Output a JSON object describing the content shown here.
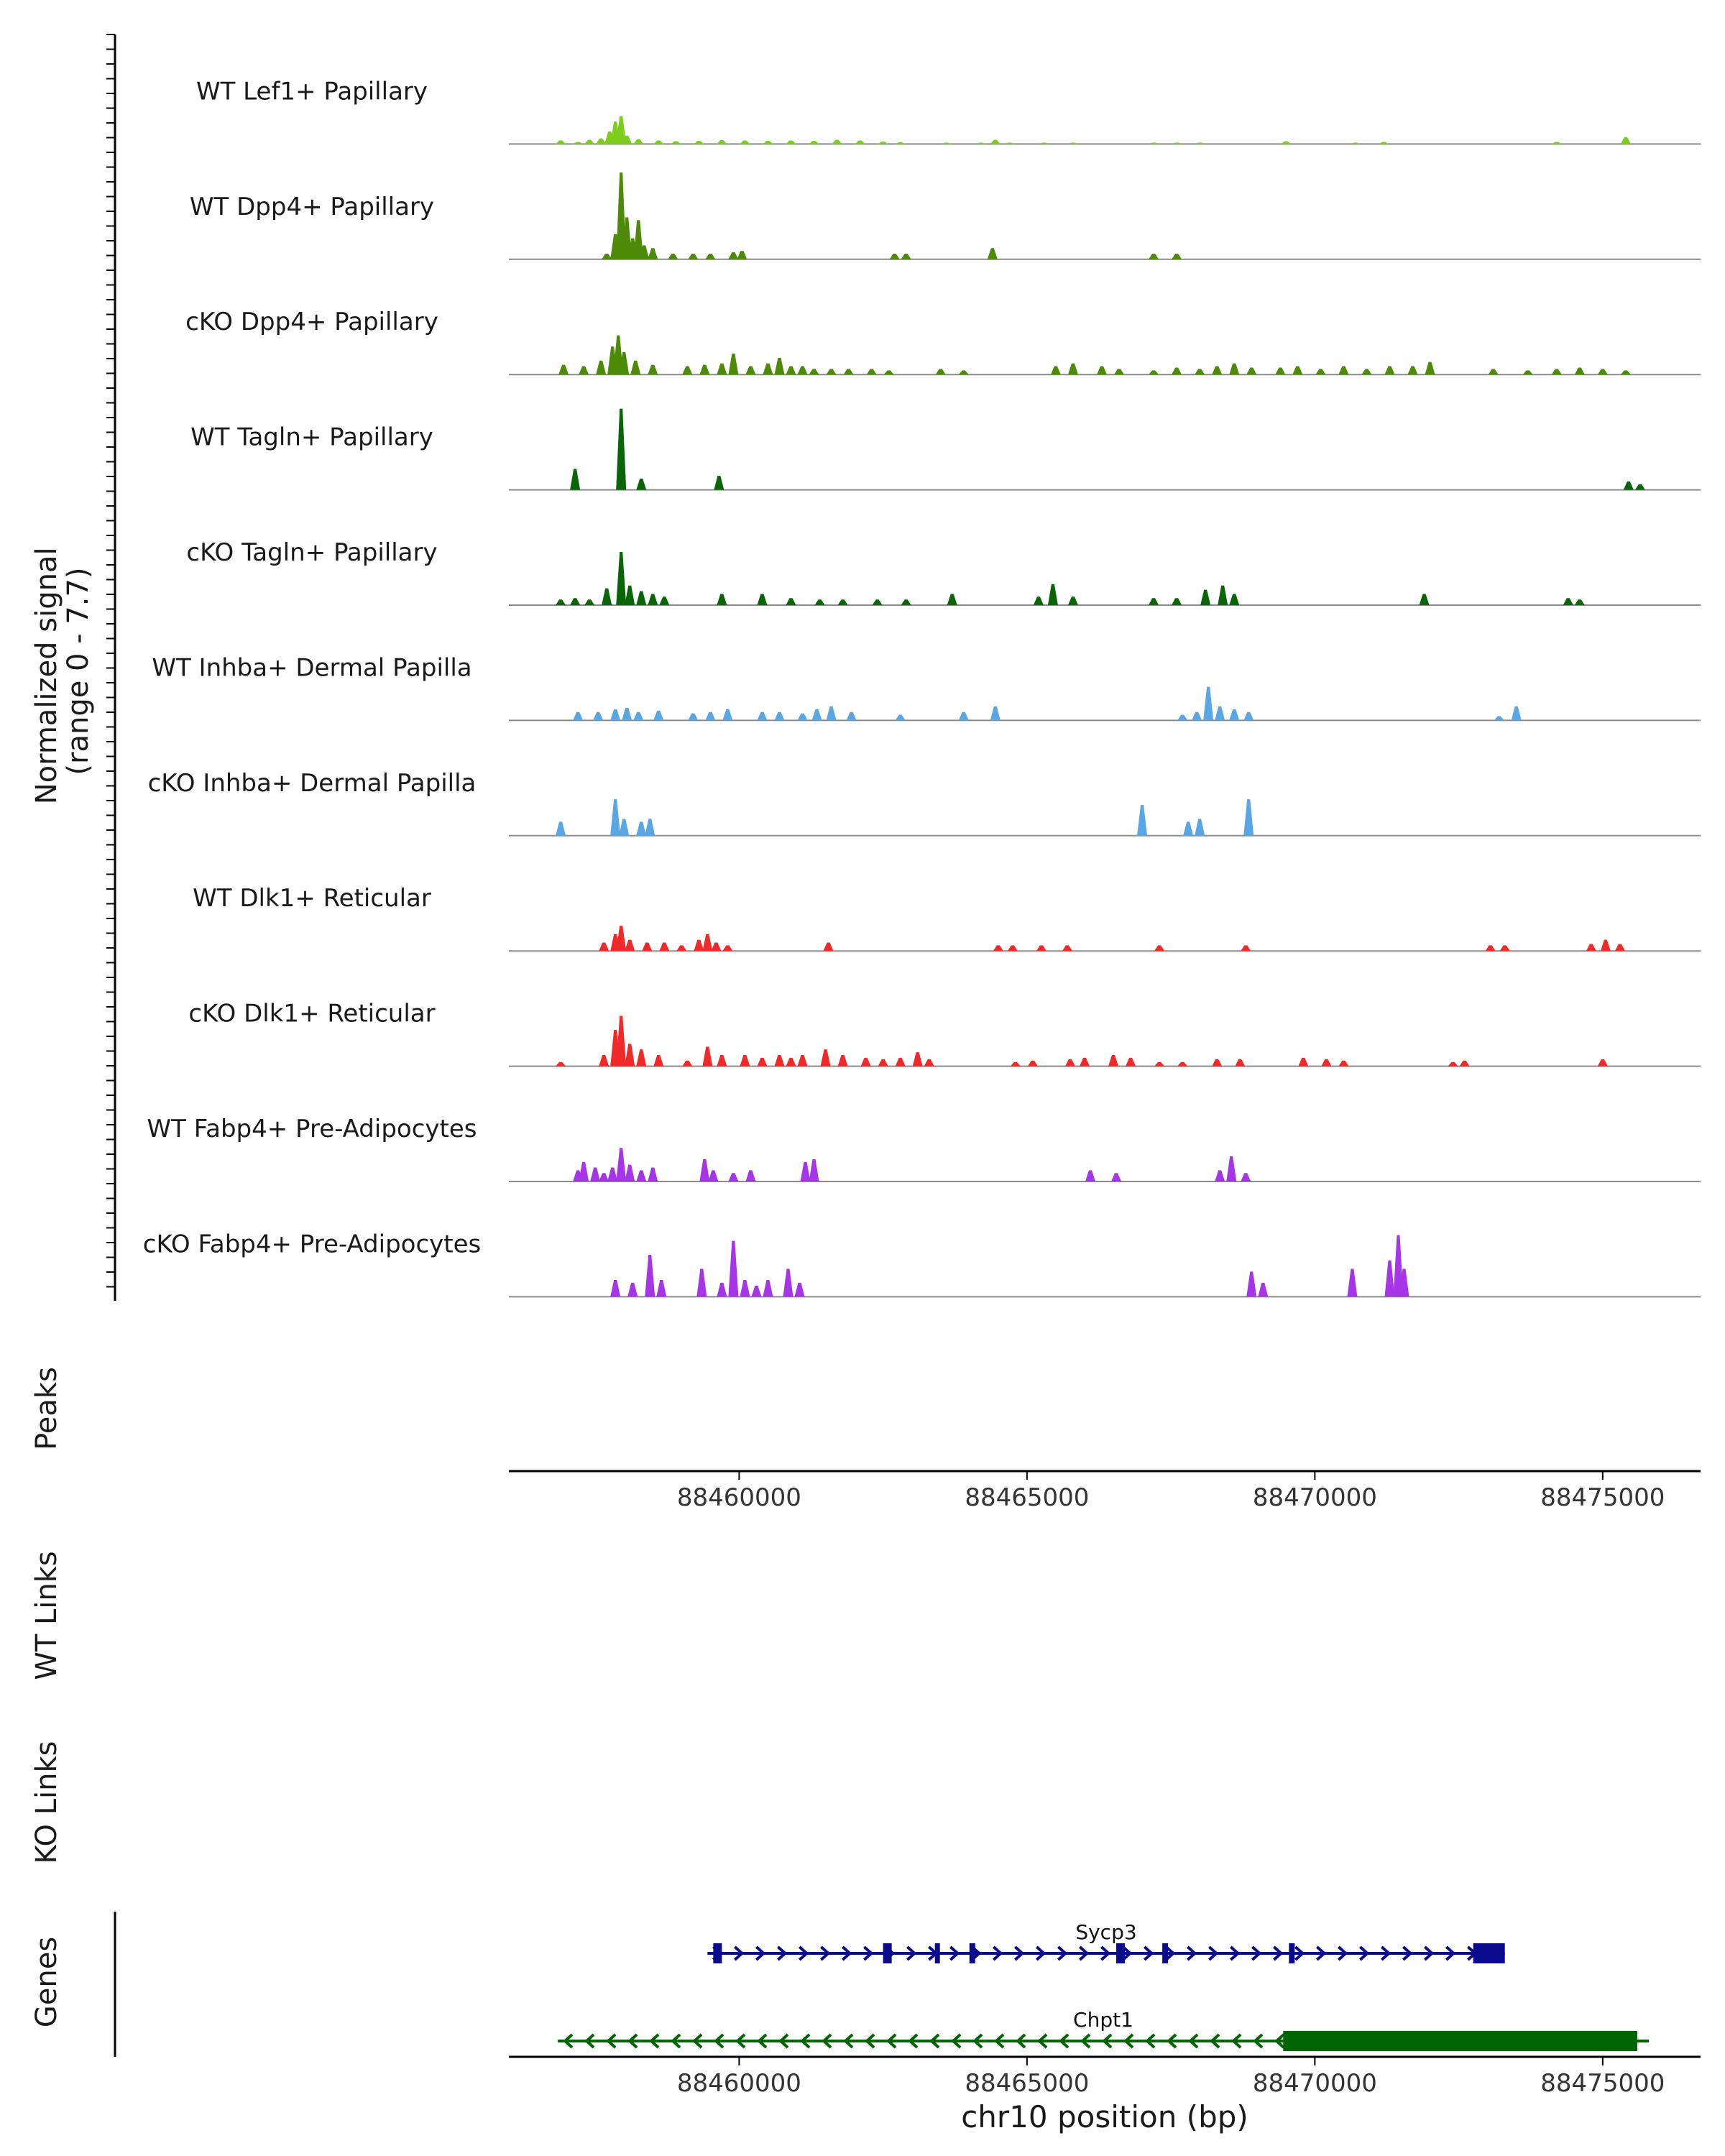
{
  "chart_data": {
    "type": "area",
    "title": "",
    "xlabel": "chr10 position (bp)",
    "ylabel": "Normalized signal\n(range 0 - 7.7)",
    "ylim": [
      0,
      7.7
    ],
    "xlim": [
      88456000,
      88476700
    ],
    "xticks": [
      88460000,
      88465000,
      88470000,
      88475000
    ],
    "xtick_labels": [
      "88460000",
      "88465000",
      "88470000",
      "88475000"
    ],
    "panel_labels": [
      "Peaks",
      "WT Links",
      "KO Links",
      "Genes"
    ],
    "tracks": [
      {
        "name": "WT Lef1+ Papillary",
        "color": "#7CCD1E",
        "points": [
          [
            88456900,
            0.25
          ],
          [
            88457200,
            0.15
          ],
          [
            88457400,
            0.3
          ],
          [
            88457600,
            0.4
          ],
          [
            88457750,
            0.9
          ],
          [
            88457850,
            1.6
          ],
          [
            88457950,
            2.0
          ],
          [
            88458050,
            0.6
          ],
          [
            88458250,
            0.35
          ],
          [
            88458600,
            0.25
          ],
          [
            88458900,
            0.2
          ],
          [
            88459300,
            0.22
          ],
          [
            88459700,
            0.28
          ],
          [
            88460100,
            0.25
          ],
          [
            88460500,
            0.22
          ],
          [
            88460900,
            0.25
          ],
          [
            88461300,
            0.22
          ],
          [
            88461700,
            0.3
          ],
          [
            88462100,
            0.25
          ],
          [
            88462500,
            0.18
          ],
          [
            88462800,
            0.12
          ],
          [
            88463600,
            0.1
          ],
          [
            88464200,
            0.1
          ],
          [
            88464450,
            0.3
          ],
          [
            88464700,
            0.1
          ],
          [
            88465300,
            0.1
          ],
          [
            88465800,
            0.1
          ],
          [
            88467200,
            0.1
          ],
          [
            88467600,
            0.1
          ],
          [
            88468000,
            0.1
          ],
          [
            88469500,
            0.2
          ],
          [
            88470700,
            0.1
          ],
          [
            88471200,
            0.15
          ],
          [
            88474200,
            0.15
          ],
          [
            88475400,
            0.5
          ]
        ]
      },
      {
        "name": "WT Dpp4+ Papillary",
        "color": "#4C8A07",
        "points": [
          [
            88457700,
            0.4
          ],
          [
            88457850,
            1.8
          ],
          [
            88457950,
            6.2
          ],
          [
            88458050,
            3.0
          ],
          [
            88458150,
            1.5
          ],
          [
            88458250,
            2.8
          ],
          [
            88458350,
            1.0
          ],
          [
            88458500,
            0.8
          ],
          [
            88458850,
            0.4
          ],
          [
            88459200,
            0.4
          ],
          [
            88459500,
            0.4
          ],
          [
            88459900,
            0.5
          ],
          [
            88460050,
            0.6
          ],
          [
            88462700,
            0.4
          ],
          [
            88462900,
            0.4
          ],
          [
            88464400,
            0.8
          ],
          [
            88467200,
            0.4
          ],
          [
            88467600,
            0.4
          ]
        ]
      },
      {
        "name": "cKO Dpp4+ Papillary",
        "color": "#4C8A07",
        "points": [
          [
            88456950,
            0.7
          ],
          [
            88457300,
            0.6
          ],
          [
            88457600,
            1.0
          ],
          [
            88457800,
            2.0
          ],
          [
            88457900,
            2.8
          ],
          [
            88458000,
            1.6
          ],
          [
            88458200,
            1.0
          ],
          [
            88458500,
            0.7
          ],
          [
            88459100,
            0.6
          ],
          [
            88459400,
            0.7
          ],
          [
            88459700,
            0.8
          ],
          [
            88459900,
            1.5
          ],
          [
            88460200,
            0.6
          ],
          [
            88460500,
            0.8
          ],
          [
            88460700,
            1.2
          ],
          [
            88460900,
            0.6
          ],
          [
            88461100,
            0.6
          ],
          [
            88461300,
            0.4
          ],
          [
            88461600,
            0.4
          ],
          [
            88461900,
            0.4
          ],
          [
            88462300,
            0.4
          ],
          [
            88462600,
            0.3
          ],
          [
            88463500,
            0.4
          ],
          [
            88463900,
            0.3
          ],
          [
            88465500,
            0.6
          ],
          [
            88465800,
            0.8
          ],
          [
            88466300,
            0.6
          ],
          [
            88466600,
            0.4
          ],
          [
            88467200,
            0.3
          ],
          [
            88467600,
            0.5
          ],
          [
            88468000,
            0.4
          ],
          [
            88468300,
            0.6
          ],
          [
            88468600,
            0.8
          ],
          [
            88468900,
            0.5
          ],
          [
            88469400,
            0.5
          ],
          [
            88469700,
            0.6
          ],
          [
            88470100,
            0.4
          ],
          [
            88470500,
            0.6
          ],
          [
            88470900,
            0.4
          ],
          [
            88471300,
            0.6
          ],
          [
            88471700,
            0.6
          ],
          [
            88472000,
            0.9
          ],
          [
            88473100,
            0.4
          ],
          [
            88473700,
            0.3
          ],
          [
            88474200,
            0.4
          ],
          [
            88474600,
            0.5
          ],
          [
            88475000,
            0.4
          ],
          [
            88475400,
            0.3
          ]
        ]
      },
      {
        "name": "WT Tagln+ Papillary",
        "color": "#0A6408",
        "points": [
          [
            88457150,
            1.5
          ],
          [
            88457950,
            5.8
          ],
          [
            88458300,
            0.8
          ],
          [
            88459650,
            1.0
          ],
          [
            88475450,
            0.6
          ],
          [
            88475650,
            0.4
          ]
        ]
      },
      {
        "name": "cKO Tagln+ Papillary",
        "color": "#0A6408",
        "points": [
          [
            88456900,
            0.4
          ],
          [
            88457150,
            0.5
          ],
          [
            88457400,
            0.4
          ],
          [
            88457700,
            1.2
          ],
          [
            88457950,
            3.8
          ],
          [
            88458100,
            1.4
          ],
          [
            88458300,
            1.0
          ],
          [
            88458500,
            0.8
          ],
          [
            88458700,
            0.6
          ],
          [
            88459700,
            0.8
          ],
          [
            88460400,
            0.8
          ],
          [
            88460900,
            0.5
          ],
          [
            88461400,
            0.4
          ],
          [
            88461800,
            0.4
          ],
          [
            88462400,
            0.4
          ],
          [
            88462900,
            0.4
          ],
          [
            88463700,
            0.8
          ],
          [
            88465200,
            0.6
          ],
          [
            88465450,
            1.5
          ],
          [
            88465800,
            0.6
          ],
          [
            88467200,
            0.5
          ],
          [
            88467600,
            0.5
          ],
          [
            88468100,
            1.1
          ],
          [
            88468400,
            1.4
          ],
          [
            88468600,
            0.8
          ],
          [
            88471900,
            0.8
          ],
          [
            88474400,
            0.5
          ],
          [
            88474600,
            0.4
          ]
        ]
      },
      {
        "name": "WT Inhba+ Dermal Papilla",
        "color": "#58A6E4",
        "points": [
          [
            88457200,
            0.6
          ],
          [
            88457550,
            0.6
          ],
          [
            88457850,
            0.8
          ],
          [
            88458050,
            0.9
          ],
          [
            88458250,
            0.6
          ],
          [
            88458600,
            0.7
          ],
          [
            88459200,
            0.5
          ],
          [
            88459500,
            0.6
          ],
          [
            88459800,
            0.8
          ],
          [
            88460400,
            0.6
          ],
          [
            88460700,
            0.6
          ],
          [
            88461100,
            0.5
          ],
          [
            88461350,
            0.8
          ],
          [
            88461600,
            1.0
          ],
          [
            88461950,
            0.6
          ],
          [
            88462800,
            0.4
          ],
          [
            88463900,
            0.6
          ],
          [
            88464450,
            1.0
          ],
          [
            88467700,
            0.4
          ],
          [
            88467950,
            0.6
          ],
          [
            88468150,
            2.4
          ],
          [
            88468350,
            1.0
          ],
          [
            88468600,
            0.8
          ],
          [
            88468850,
            0.6
          ],
          [
            88473200,
            0.3
          ],
          [
            88473500,
            1.0
          ]
        ]
      },
      {
        "name": "cKO Inhba+ Dermal Papilla",
        "color": "#58A6E4",
        "points": [
          [
            88456900,
            1.0
          ],
          [
            88457850,
            2.6
          ],
          [
            88458000,
            1.2
          ],
          [
            88458300,
            1.0
          ],
          [
            88458450,
            1.2
          ],
          [
            88467000,
            2.2
          ],
          [
            88467800,
            1.0
          ],
          [
            88468000,
            1.2
          ],
          [
            88468850,
            2.6
          ]
        ]
      },
      {
        "name": "WT Dlk1+ Reticular",
        "color": "#F02A2A",
        "points": [
          [
            88457650,
            0.6
          ],
          [
            88457850,
            1.2
          ],
          [
            88457950,
            1.8
          ],
          [
            88458100,
            0.8
          ],
          [
            88458400,
            0.6
          ],
          [
            88458700,
            0.6
          ],
          [
            88459000,
            0.4
          ],
          [
            88459300,
            0.8
          ],
          [
            88459450,
            1.2
          ],
          [
            88459600,
            0.6
          ],
          [
            88459800,
            0.4
          ],
          [
            88461550,
            0.6
          ],
          [
            88464500,
            0.4
          ],
          [
            88464750,
            0.4
          ],
          [
            88465250,
            0.4
          ],
          [
            88465700,
            0.4
          ],
          [
            88467300,
            0.4
          ],
          [
            88468800,
            0.4
          ],
          [
            88473050,
            0.4
          ],
          [
            88473300,
            0.4
          ],
          [
            88474800,
            0.5
          ],
          [
            88475050,
            0.8
          ],
          [
            88475300,
            0.5
          ]
        ]
      },
      {
        "name": "cKO Dlk1+ Reticular",
        "color": "#F02A2A",
        "points": [
          [
            88456900,
            0.3
          ],
          [
            88457650,
            0.8
          ],
          [
            88457850,
            2.6
          ],
          [
            88457950,
            3.6
          ],
          [
            88458100,
            1.6
          ],
          [
            88458300,
            1.2
          ],
          [
            88458600,
            0.8
          ],
          [
            88459100,
            0.4
          ],
          [
            88459450,
            1.4
          ],
          [
            88459700,
            0.8
          ],
          [
            88460100,
            0.8
          ],
          [
            88460400,
            0.6
          ],
          [
            88460700,
            0.8
          ],
          [
            88460900,
            0.6
          ],
          [
            88461100,
            0.8
          ],
          [
            88461500,
            1.2
          ],
          [
            88461800,
            0.8
          ],
          [
            88462200,
            0.6
          ],
          [
            88462500,
            0.5
          ],
          [
            88462800,
            0.6
          ],
          [
            88463100,
            1.0
          ],
          [
            88463300,
            0.5
          ],
          [
            88464800,
            0.3
          ],
          [
            88465100,
            0.4
          ],
          [
            88465750,
            0.5
          ],
          [
            88466000,
            0.6
          ],
          [
            88466500,
            0.8
          ],
          [
            88466800,
            0.6
          ],
          [
            88467300,
            0.3
          ],
          [
            88467700,
            0.3
          ],
          [
            88468300,
            0.5
          ],
          [
            88468700,
            0.5
          ],
          [
            88469800,
            0.6
          ],
          [
            88470200,
            0.5
          ],
          [
            88470500,
            0.4
          ],
          [
            88472400,
            0.3
          ],
          [
            88472600,
            0.4
          ],
          [
            88475000,
            0.5
          ]
        ]
      },
      {
        "name": "WT Fabp4+ Pre-Adipocytes",
        "color": "#A535E6",
        "points": [
          [
            88457200,
            0.8
          ],
          [
            88457300,
            1.4
          ],
          [
            88457500,
            1.0
          ],
          [
            88457650,
            0.6
          ],
          [
            88457800,
            1.0
          ],
          [
            88457950,
            2.4
          ],
          [
            88458100,
            1.2
          ],
          [
            88458300,
            0.8
          ],
          [
            88458500,
            1.0
          ],
          [
            88459400,
            1.6
          ],
          [
            88459550,
            0.8
          ],
          [
            88459900,
            0.6
          ],
          [
            88460200,
            0.8
          ],
          [
            88461150,
            1.4
          ],
          [
            88461300,
            1.6
          ],
          [
            88466100,
            0.8
          ],
          [
            88466550,
            0.6
          ],
          [
            88468350,
            0.8
          ],
          [
            88468550,
            1.8
          ],
          [
            88468800,
            0.6
          ]
        ]
      },
      {
        "name": "cKO Fabp4+ Pre-Adipocytes",
        "color": "#A535E6",
        "points": [
          [
            88457850,
            1.2
          ],
          [
            88458150,
            1.0
          ],
          [
            88458450,
            3.0
          ],
          [
            88458650,
            1.2
          ],
          [
            88459350,
            2.0
          ],
          [
            88459700,
            1.0
          ],
          [
            88459900,
            4.0
          ],
          [
            88460100,
            1.2
          ],
          [
            88460300,
            0.8
          ],
          [
            88460500,
            1.2
          ],
          [
            88460850,
            2.0
          ],
          [
            88461050,
            1.0
          ],
          [
            88468900,
            1.8
          ],
          [
            88469100,
            1.0
          ],
          [
            88470650,
            2.0
          ],
          [
            88471300,
            2.6
          ],
          [
            88471450,
            4.4
          ],
          [
            88471550,
            2.0
          ]
        ]
      }
    ],
    "genes": [
      {
        "name": "Sycp3",
        "strand": "+",
        "color": "#0A0A8C",
        "start": 88459450,
        "end": 88473300,
        "exons": [
          [
            88459550,
            88459700
          ],
          [
            88462500,
            88462650
          ],
          [
            88463400,
            88463480
          ],
          [
            88464000,
            88464100
          ],
          [
            88466550,
            88466700
          ],
          [
            88467350,
            88467450
          ],
          [
            88469550,
            88469650
          ],
          [
            88472750,
            88473300
          ]
        ]
      },
      {
        "name": "Chpt1",
        "strand": "-",
        "color": "#006400",
        "start": 88456850,
        "end": 88475800,
        "exons": [
          [
            88469450,
            88475600
          ]
        ]
      }
    ]
  }
}
